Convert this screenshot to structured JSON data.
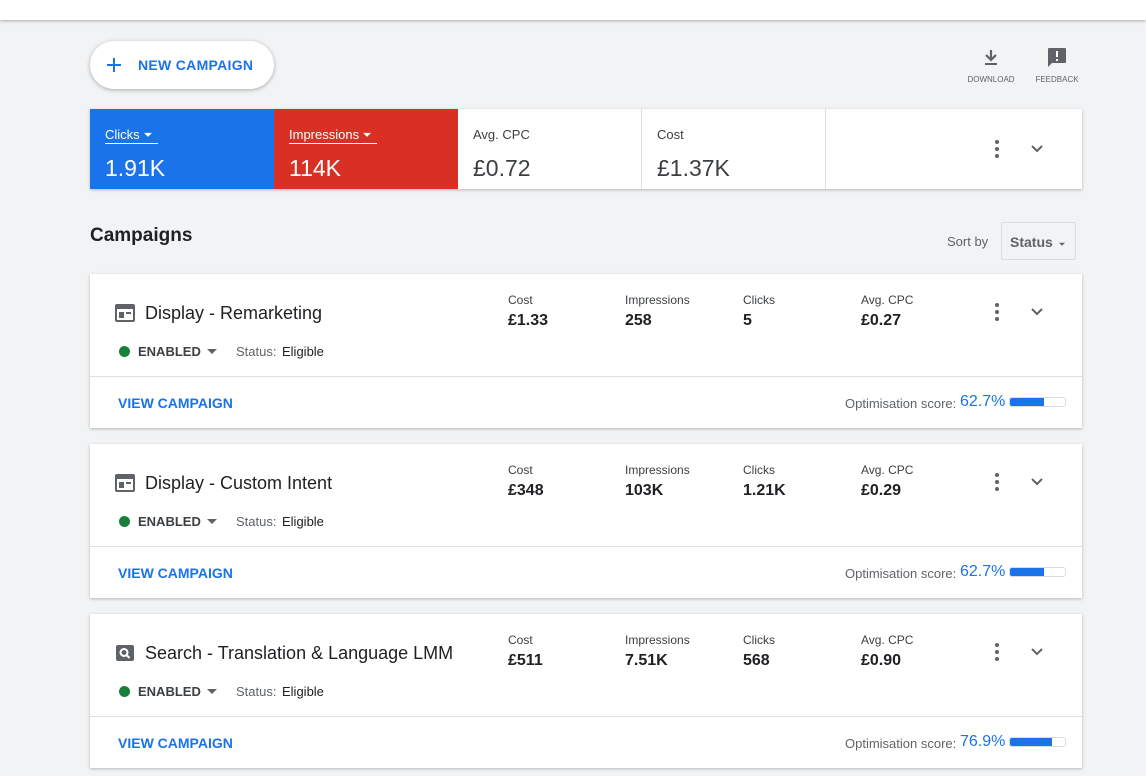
{
  "toolbar": {
    "new_campaign": "NEW CAMPAIGN",
    "download": "DOWNLOAD",
    "feedback": "FEEDBACK"
  },
  "scorecards": [
    {
      "label": "Clicks",
      "value": "1.91K"
    },
    {
      "label": "Impressions",
      "value": "114K"
    },
    {
      "label": "Avg. CPC",
      "value": "£0.72"
    },
    {
      "label": "Cost",
      "value": "£1.37K"
    }
  ],
  "campaigns_header": {
    "title": "Campaigns",
    "sort_label": "Sort by",
    "sort_value": "Status"
  },
  "campaigns": [
    {
      "name": "Display - Remarketing",
      "state": "ENABLED",
      "status_label": "Status:",
      "status_value": "Eligible",
      "metrics": [
        {
          "label": "Cost",
          "value": "£1.33"
        },
        {
          "label": "Impressions",
          "value": "258"
        },
        {
          "label": "Clicks",
          "value": "5"
        },
        {
          "label": "Avg. CPC",
          "value": "£0.27"
        }
      ],
      "action": "VIEW CAMPAIGN",
      "score_label": "Optimisation score:",
      "score": {
        "value": 62.7,
        "label": "62.7%"
      }
    },
    {
      "name": "Display - Custom Intent",
      "state": "ENABLED",
      "status_label": "Status:",
      "status_value": "Eligible",
      "metrics": [
        {
          "label": "Cost",
          "value": "£348"
        },
        {
          "label": "Impressions",
          "value": "103K"
        },
        {
          "label": "Clicks",
          "value": "1.21K"
        },
        {
          "label": "Avg. CPC",
          "value": "£0.29"
        }
      ],
      "action": "VIEW CAMPAIGN",
      "score_label": "Optimisation score:",
      "score": {
        "value": 62.7,
        "label": "62.7%"
      }
    },
    {
      "name": "Search - Translation & Language LMM",
      "state": "ENABLED",
      "status_label": "Status:",
      "status_value": "Eligible",
      "metrics": [
        {
          "label": "Cost",
          "value": "£511"
        },
        {
          "label": "Impressions",
          "value": "7.51K"
        },
        {
          "label": "Clicks",
          "value": "568"
        },
        {
          "label": "Avg. CPC",
          "value": "£0.90"
        }
      ],
      "action": "VIEW CAMPAIGN",
      "score_label": "Optimisation score:",
      "score": {
        "value": 76.9,
        "label": "76.9%"
      }
    }
  ]
}
